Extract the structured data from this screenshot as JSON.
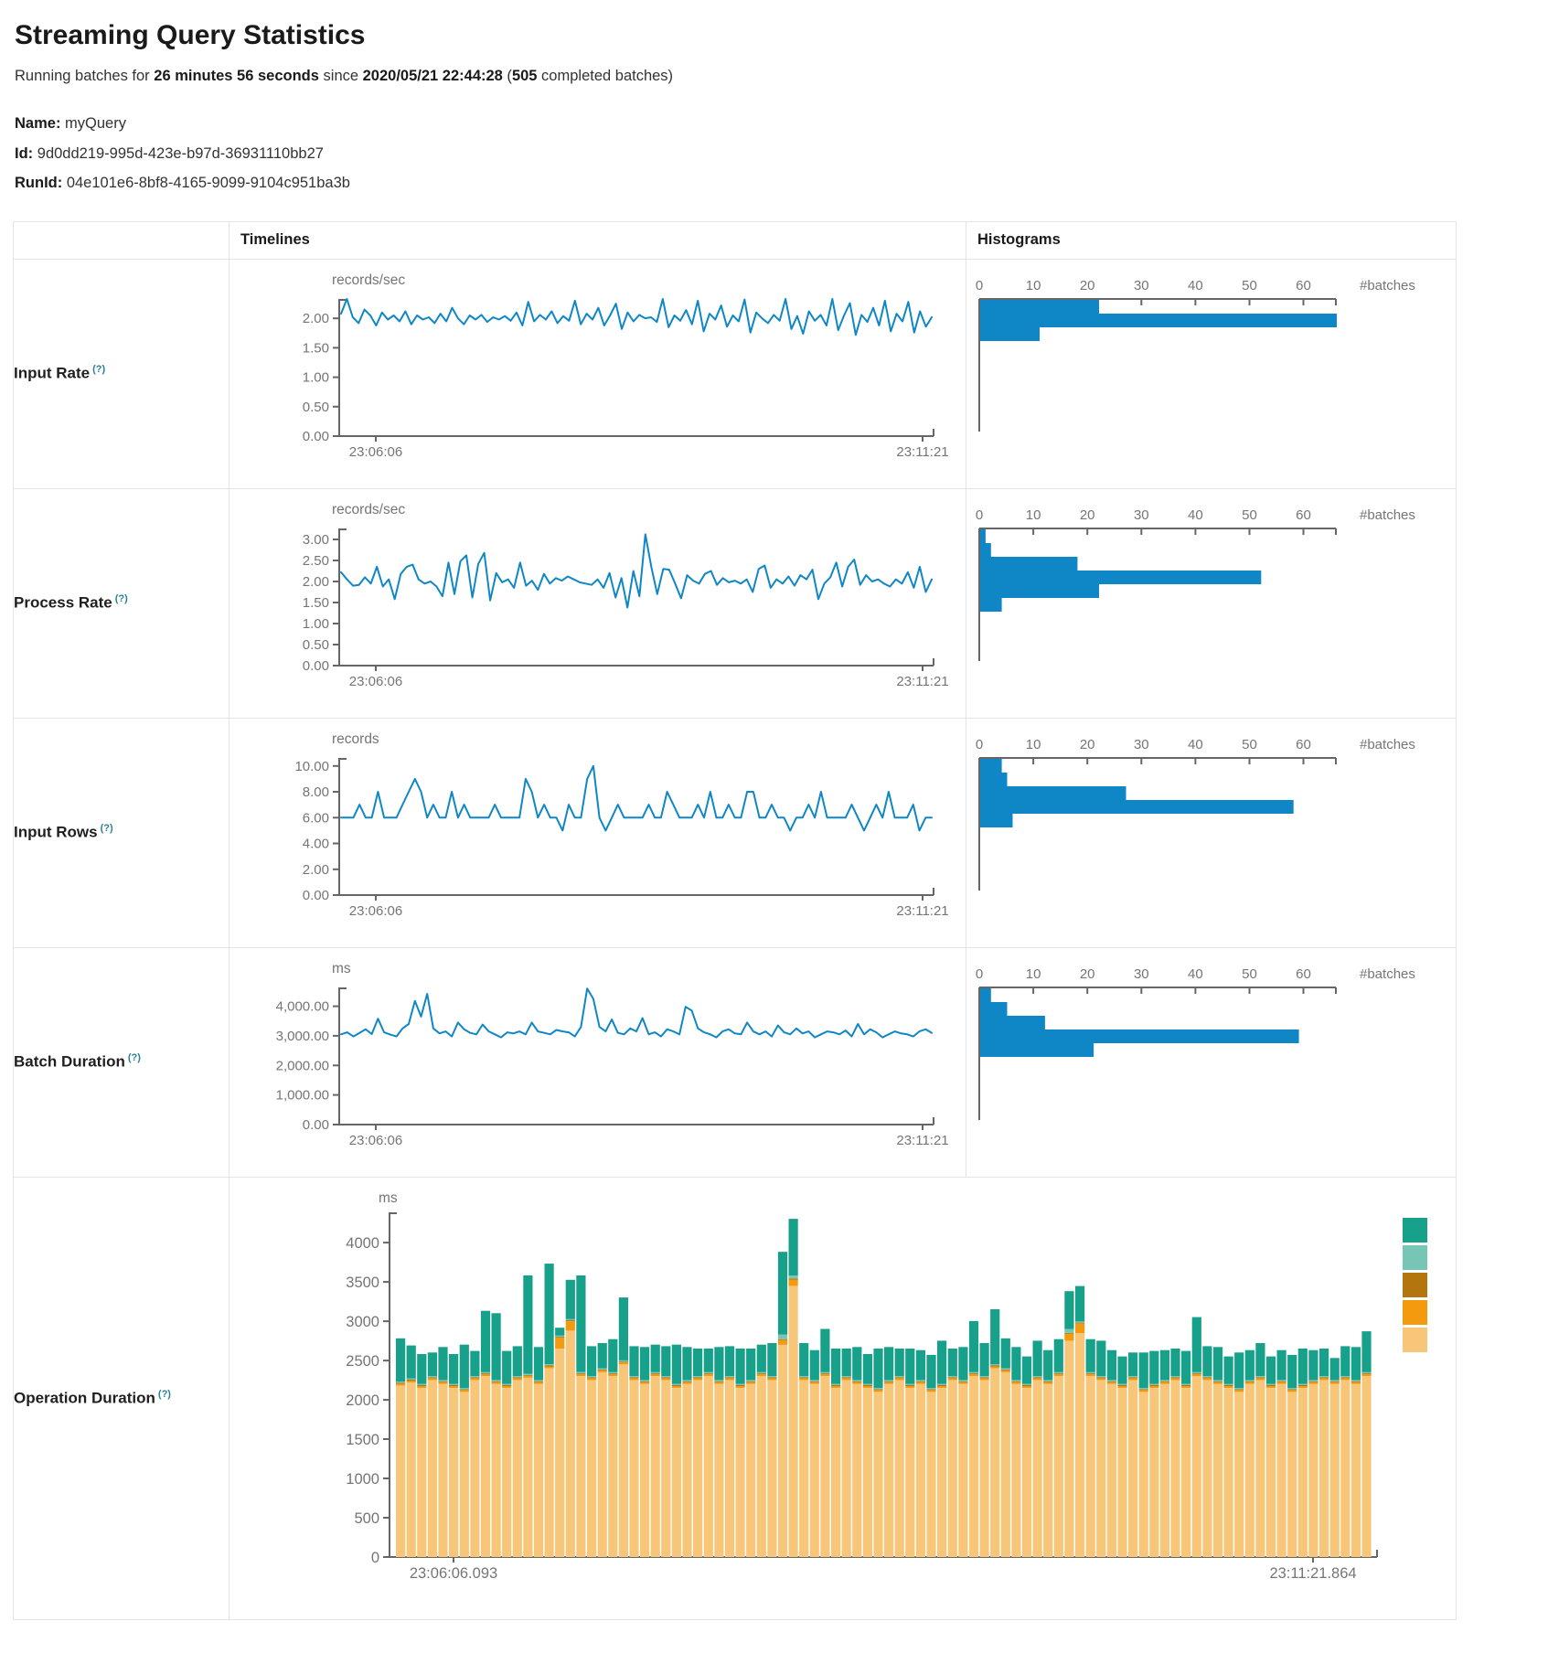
{
  "page": {
    "title": "Streaming Query Statistics",
    "subtitle": {
      "prefix": "Running batches for ",
      "duration": "26 minutes 56 seconds",
      "mid": " since ",
      "since": "2020/05/21 22:44:28",
      "paren_open": " (",
      "batches": "505",
      "suffix": " completed batches)"
    },
    "name_label": "Name:",
    "name_value": "myQuery",
    "id_label": "Id:",
    "id_value": "9d0dd219-995d-423e-b97d-36931110bb27",
    "runid_label": "RunId:",
    "runid_value": "04e101e6-8bf8-4165-9099-9104c951ba3b"
  },
  "table": {
    "headers": {
      "timelines": "Timelines",
      "histograms": "Histograms"
    },
    "rows": [
      {
        "label": "Input Rate",
        "help": "(?)"
      },
      {
        "label": "Process Rate",
        "help": "(?)"
      },
      {
        "label": "Input Rows",
        "help": "(?)"
      },
      {
        "label": "Batch Duration",
        "help": "(?)"
      },
      {
        "label": "Operation Duration",
        "help": "(?)"
      }
    ]
  },
  "colors": {
    "accent_blue": "#0f87c6",
    "axis": "#666666",
    "tick_text": "#757575",
    "border": "#e3e3e8",
    "teal": "#17a08a",
    "light_teal": "#76c5b5",
    "dark_orange": "#b4750f",
    "orange": "#f39a0e",
    "tan": "#f8c678"
  },
  "chart_data": [
    {
      "id": "input-rate-timeline",
      "type": "line",
      "row": "Input Rate",
      "unit": "records/sec",
      "x_start": "23:06:06",
      "x_end": "23:11:21",
      "ymax_axis": 2.33,
      "y_ticks": [
        {
          "v": 2,
          "label": "2.00"
        },
        {
          "v": 1.5,
          "label": "1.50"
        },
        {
          "v": 1,
          "label": "1.00"
        },
        {
          "v": 0.5,
          "label": "0.50"
        },
        {
          "v": 0,
          "label": "0.00"
        }
      ],
      "values": [
        2.08,
        2.33,
        2.02,
        1.92,
        2.15,
        2.05,
        1.88,
        2.1,
        1.98,
        2.05,
        1.95,
        2.12,
        1.9,
        2.05,
        1.98,
        2.02,
        1.92,
        2.08,
        1.95,
        2.18,
        2.0,
        1.9,
        2.05,
        1.98,
        2.06,
        1.94,
        2.02,
        1.98,
        2.04,
        1.96,
        2.1,
        1.88,
        2.28,
        1.95,
        2.06,
        1.98,
        2.12,
        1.92,
        2.04,
        1.96,
        2.3,
        1.9,
        2.08,
        1.98,
        2.18,
        1.88,
        2.05,
        2.25,
        1.82,
        2.1,
        1.95,
        2.06,
        2.0,
        2.02,
        1.94,
        2.33,
        1.85,
        2.05,
        1.96,
        2.14,
        1.9,
        2.3,
        1.78,
        2.08,
        1.98,
        2.22,
        1.86,
        2.05,
        1.95,
        2.32,
        1.76,
        2.1,
        2.0,
        1.92,
        2.06,
        1.96,
        2.33,
        1.82,
        2.04,
        1.74,
        2.12,
        1.96,
        2.06,
        1.88,
        2.33,
        1.8,
        2.05,
        2.26,
        1.72,
        2.06,
        1.94,
        2.18,
        1.88,
        2.3,
        1.78,
        2.08,
        1.95,
        2.28,
        1.76,
        2.12,
        1.86,
        2.02
      ]
    },
    {
      "id": "input-rate-histogram",
      "type": "bar",
      "row": "Input Rate",
      "orientation": "horizontal",
      "xlabel": "#batches",
      "x_ticks": [
        0,
        10,
        20,
        30,
        40,
        50,
        60
      ],
      "xmax_axis": 66,
      "counts": [
        22,
        66,
        11
      ]
    },
    {
      "id": "process-rate-timeline",
      "type": "line",
      "row": "Process Rate",
      "unit": "records/sec",
      "x_start": "23:06:06",
      "x_end": "23:11:21",
      "ymax_axis": 3.26,
      "y_ticks": [
        {
          "v": 3,
          "label": "3.00"
        },
        {
          "v": 2.5,
          "label": "2.50"
        },
        {
          "v": 2,
          "label": "2.00"
        },
        {
          "v": 1.5,
          "label": "1.50"
        },
        {
          "v": 1,
          "label": "1.00"
        },
        {
          "v": 0.5,
          "label": "0.50"
        },
        {
          "v": 0,
          "label": "0.00"
        }
      ],
      "values": [
        2.22,
        2.05,
        1.9,
        1.92,
        2.1,
        1.95,
        2.35,
        1.88,
        2.05,
        1.58,
        2.18,
        2.35,
        2.4,
        2.05,
        1.95,
        2.0,
        1.88,
        1.65,
        2.45,
        1.7,
        2.48,
        2.62,
        1.62,
        2.42,
        2.68,
        1.55,
        2.2,
        1.98,
        2.05,
        1.85,
        2.45,
        1.9,
        2.02,
        1.8,
        2.18,
        1.95,
        2.08,
        2.02,
        2.12,
        2.05,
        1.98,
        1.95,
        1.92,
        2.05,
        1.85,
        2.2,
        1.62,
        2.08,
        1.38,
        2.25,
        1.65,
        3.12,
        2.35,
        1.7,
        2.3,
        2.28,
        1.95,
        1.6,
        2.15,
        2.02,
        1.95,
        2.18,
        2.25,
        1.92,
        2.08,
        1.98,
        2.02,
        1.95,
        2.05,
        1.75,
        2.3,
        2.38,
        1.85,
        2.05,
        1.95,
        2.12,
        1.9,
        2.15,
        2.05,
        2.28,
        1.58,
        1.95,
        2.1,
        2.45,
        1.88,
        2.35,
        2.52,
        1.92,
        2.15,
        2.0,
        2.05,
        1.95,
        1.88,
        2.05,
        1.95,
        2.22,
        1.85,
        2.35,
        1.75,
        2.05
      ]
    },
    {
      "id": "process-rate-histogram",
      "type": "bar",
      "row": "Process Rate",
      "orientation": "horizontal",
      "xlabel": "#batches",
      "x_ticks": [
        0,
        10,
        20,
        30,
        40,
        50,
        60
      ],
      "xmax_axis": 66,
      "counts": [
        1,
        2,
        18,
        52,
        22,
        4
      ]
    },
    {
      "id": "input-rows-timeline",
      "type": "line",
      "row": "Input Rows",
      "unit": "records",
      "x_start": "23:06:06",
      "x_end": "23:11:21",
      "ymax_axis": 10.62,
      "y_ticks": [
        {
          "v": 10,
          "label": "10.00"
        },
        {
          "v": 8,
          "label": "8.00"
        },
        {
          "v": 6,
          "label": "6.00"
        },
        {
          "v": 4,
          "label": "4.00"
        },
        {
          "v": 2,
          "label": "2.00"
        },
        {
          "v": 0,
          "label": "0.00"
        }
      ],
      "values": [
        6,
        6,
        6,
        7,
        6,
        6,
        8,
        6,
        6,
        6,
        7,
        8,
        9,
        8,
        6,
        7,
        6,
        6,
        8,
        6,
        7,
        6,
        6,
        6,
        6,
        7,
        6,
        6,
        6,
        6,
        9,
        8,
        6,
        7,
        6,
        6,
        5,
        7,
        6,
        6,
        9,
        10,
        6,
        5,
        6,
        7,
        6,
        6,
        6,
        6,
        7,
        6,
        6,
        8,
        7,
        6,
        6,
        6,
        7,
        6,
        8,
        6,
        6,
        7,
        6,
        6,
        8,
        8,
        6,
        6,
        7,
        6,
        6,
        5,
        6,
        6,
        7,
        6,
        8,
        6,
        6,
        6,
        6,
        7,
        6,
        5,
        6,
        7,
        6,
        8,
        6,
        6,
        6,
        7,
        5,
        6,
        6
      ]
    },
    {
      "id": "input-rows-histogram",
      "type": "bar",
      "row": "Input Rows",
      "orientation": "horizontal",
      "xlabel": "#batches",
      "x_ticks": [
        0,
        10,
        20,
        30,
        40,
        50,
        60
      ],
      "xmax_axis": 66,
      "counts": [
        4,
        5,
        27,
        58,
        6
      ]
    },
    {
      "id": "batch-duration-timeline",
      "type": "line",
      "row": "Batch Duration",
      "unit": "ms",
      "x_start": "23:06:06",
      "x_end": "23:11:21",
      "ymax_axis": 4636,
      "y_ticks": [
        {
          "v": 4000,
          "label": "4,000.00"
        },
        {
          "v": 3000,
          "label": "3,000.00"
        },
        {
          "v": 2000,
          "label": "2,000.00"
        },
        {
          "v": 1000,
          "label": "1,000.00"
        },
        {
          "v": 0,
          "label": "0.00"
        }
      ],
      "values": [
        3050,
        3120,
        2980,
        3100,
        3220,
        3060,
        3580,
        3120,
        3040,
        2980,
        3250,
        3400,
        4180,
        3650,
        4420,
        3250,
        3080,
        3150,
        2980,
        3450,
        3220,
        3100,
        3050,
        3380,
        3150,
        3050,
        2950,
        3120,
        3080,
        3150,
        3050,
        3450,
        3150,
        3100,
        3050,
        3200,
        3150,
        3120,
        2980,
        3300,
        4600,
        4250,
        3300,
        3150,
        3550,
        3100,
        3050,
        3250,
        3150,
        3600,
        3050,
        3120,
        2980,
        3220,
        3150,
        3050,
        3980,
        3850,
        3250,
        3120,
        3050,
        2950,
        3150,
        3220,
        3080,
        3050,
        3450,
        3150,
        3050,
        3150,
        2980,
        3350,
        3120,
        3050,
        3250,
        3080,
        3150,
        2950,
        3050,
        3150,
        3120,
        3050,
        3180,
        2980,
        3400,
        3050,
        3220,
        3120,
        2950,
        3050,
        3150,
        3080,
        3050,
        2980,
        3150,
        3220,
        3100
      ]
    },
    {
      "id": "batch-duration-histogram",
      "type": "bar",
      "row": "Batch Duration",
      "orientation": "horizontal",
      "xlabel": "#batches",
      "x_ticks": [
        0,
        10,
        20,
        30,
        40,
        50,
        60
      ],
      "xmax_axis": 66,
      "counts": [
        2,
        5,
        12,
        59,
        21
      ]
    },
    {
      "id": "operation-duration",
      "type": "stacked-bar",
      "row": "Operation Duration",
      "unit": "ms",
      "x_start": "23:06:06.093",
      "x_end": "23:11:21.864",
      "ymax_axis": 4385,
      "y_ticks": [
        {
          "v": 4000,
          "label": "4000"
        },
        {
          "v": 3500,
          "label": "3500"
        },
        {
          "v": 3000,
          "label": "3000"
        },
        {
          "v": 2500,
          "label": "2500"
        },
        {
          "v": 2000,
          "label": "2000"
        },
        {
          "v": 1500,
          "label": "1500"
        },
        {
          "v": 1000,
          "label": "1000"
        },
        {
          "v": 500,
          "label": "500"
        },
        {
          "v": 0,
          "label": "0"
        }
      ],
      "legend": [
        "teal",
        "light_teal",
        "dark_orange",
        "orange",
        "tan"
      ],
      "series": [
        {
          "name": "tan-segment",
          "color_key": "tan",
          "values": [
            2180,
            2220,
            2150,
            2250,
            2200,
            2150,
            2100,
            2250,
            2300,
            2200,
            2150,
            2250,
            2280,
            2200,
            2400,
            2650,
            2880,
            2300,
            2250,
            2350,
            2300,
            2450,
            2250,
            2200,
            2300,
            2250,
            2150,
            2200,
            2250,
            2300,
            2200,
            2250,
            2150,
            2200,
            2300,
            2250,
            2700,
            3450,
            2250,
            2200,
            2300,
            2150,
            2250,
            2200,
            2150,
            2100,
            2200,
            2250,
            2150,
            2200,
            2100,
            2150,
            2250,
            2200,
            2300,
            2250,
            2400,
            2350,
            2200,
            2150,
            2250,
            2200,
            2300,
            2750,
            2850,
            2300,
            2250,
            2200,
            2150,
            2250,
            2100,
            2150,
            2200,
            2250,
            2150,
            2300,
            2250,
            2200,
            2150,
            2100,
            2200,
            2250,
            2150,
            2200,
            2100,
            2150,
            2200,
            2250,
            2200,
            2250,
            2200,
            2300
          ]
        },
        {
          "name": "orange-segment",
          "color_key": "orange",
          "default": 25,
          "overrides": {
            "15": 140,
            "16": 120,
            "36": 60,
            "37": 80,
            "63": 90,
            "64": 120
          }
        },
        {
          "name": "dark-orange-segment",
          "color_key": "dark_orange",
          "default": 12,
          "overrides": {}
        },
        {
          "name": "light-teal-segment",
          "color_key": "light_teal",
          "default": 15,
          "overrides": {
            "36": 60,
            "37": 40,
            "63": 50
          }
        },
        {
          "name": "teal-segment",
          "color_key": "teal",
          "values": [
            550,
            420,
            380,
            300,
            420,
            380,
            550,
            320,
            780,
            850,
            420,
            380,
            1250,
            420,
            1280,
            100,
            500,
            1230,
            380,
            320,
            420,
            800,
            380,
            420,
            350,
            380,
            500,
            420,
            350,
            300,
            420,
            380,
            450,
            400,
            350,
            420,
            1050,
            720,
            420,
            380,
            550,
            450,
            350,
            420,
            380,
            500,
            420,
            350,
            450,
            380,
            420,
            550,
            350,
            420,
            650,
            420,
            700,
            380,
            420,
            350,
            450,
            380,
            420,
            480,
            450,
            420,
            450,
            380,
            350,
            300,
            450,
            420,
            380,
            350,
            420,
            700,
            380,
            420,
            350,
            450,
            380,
            420,
            350,
            380,
            420,
            450,
            380,
            350,
            280,
            380,
            420,
            520
          ]
        }
      ]
    }
  ]
}
